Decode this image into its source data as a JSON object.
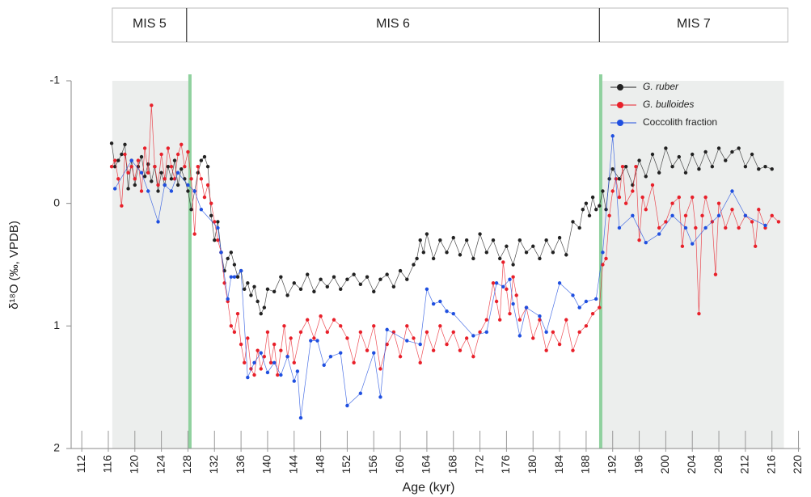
{
  "chart_data": {
    "type": "line",
    "xlabel": "Age (kyr)",
    "ylabel": "δ¹⁸O (‰, VPDB)",
    "xlim": [
      110.4,
      220.3
    ],
    "ylim": [
      -1,
      2
    ],
    "y_inverted": true,
    "xticks": [
      112,
      116,
      120,
      124,
      128,
      132,
      136,
      140,
      144,
      148,
      152,
      156,
      160,
      164,
      168,
      172,
      176,
      180,
      184,
      188,
      192,
      196,
      200,
      204,
      208,
      212,
      216,
      220
    ],
    "yticks": [
      -1,
      0,
      1,
      2
    ],
    "legend": "upper right",
    "shaded_regions": [
      [
        116.6,
        128.3
      ],
      [
        190.2,
        217.8
      ]
    ],
    "boundaries": [
      {
        "x": 128.3,
        "color": "#8fd19e"
      },
      {
        "x": 190.2,
        "color": "#8fd19e"
      }
    ],
    "mis_stages": [
      {
        "label": "MIS 5",
        "start": 116.6,
        "end": 127.8
      },
      {
        "label": "MIS 6",
        "start": 127.8,
        "end": 190.0
      },
      {
        "label": "MIS 7",
        "start": 190.0,
        "end": 218.4
      }
    ],
    "series": [
      {
        "name": "G. ruber",
        "color": "#222222",
        "x": [
          116.5,
          117,
          117.5,
          118,
          118.5,
          119,
          119.5,
          120,
          120.5,
          121,
          121.5,
          122,
          122.5,
          123,
          123.5,
          124,
          124.5,
          125,
          125.5,
          126,
          126.5,
          127,
          127.5,
          128,
          128.5,
          129,
          129.5,
          130,
          130.5,
          131,
          131.5,
          132,
          132.5,
          133,
          133.5,
          134,
          134.5,
          135,
          135.5,
          136,
          136.5,
          137,
          137.5,
          138,
          138.5,
          139,
          139.5,
          140,
          141,
          142,
          143,
          144,
          145,
          146,
          147,
          148,
          149,
          150,
          151,
          152,
          153,
          154,
          155,
          156,
          157,
          158,
          159,
          160,
          161,
          162,
          162.5,
          163,
          163.5,
          164,
          165,
          166,
          167,
          168,
          169,
          170,
          171,
          172,
          173,
          174,
          175,
          176,
          177,
          178,
          179,
          180,
          181,
          182,
          183,
          184,
          185,
          186,
          187,
          187.5,
          188,
          188.5,
          189,
          189.5,
          190,
          190.5,
          191,
          191.5,
          192,
          193,
          194,
          195,
          196,
          197,
          198,
          199,
          200,
          201,
          202,
          203,
          204,
          205,
          206,
          207,
          208,
          209,
          210,
          211,
          212,
          213,
          214,
          215,
          216
        ],
        "values": [
          -0.49,
          -0.3,
          -0.35,
          -0.4,
          -0.48,
          -0.12,
          -0.35,
          -0.15,
          -0.3,
          -0.38,
          -0.22,
          -0.32,
          -0.18,
          -0.3,
          -0.1,
          -0.25,
          -0.15,
          -0.3,
          -0.2,
          -0.35,
          -0.15,
          -0.28,
          -0.2,
          -0.1,
          0.05,
          -0.1,
          -0.25,
          -0.35,
          -0.38,
          -0.3,
          0.1,
          0.3,
          0.15,
          0.4,
          0.55,
          0.45,
          0.4,
          0.5,
          0.6,
          0.55,
          0.7,
          0.65,
          0.75,
          0.68,
          0.8,
          0.9,
          0.85,
          0.7,
          0.72,
          0.6,
          0.75,
          0.65,
          0.7,
          0.58,
          0.72,
          0.62,
          0.68,
          0.6,
          0.7,
          0.62,
          0.58,
          0.66,
          0.6,
          0.72,
          0.62,
          0.58,
          0.68,
          0.55,
          0.62,
          0.5,
          0.45,
          0.3,
          0.4,
          0.25,
          0.45,
          0.3,
          0.4,
          0.28,
          0.42,
          0.3,
          0.45,
          0.25,
          0.4,
          0.3,
          0.45,
          0.35,
          0.5,
          0.3,
          0.4,
          0.35,
          0.45,
          0.3,
          0.4,
          0.28,
          0.42,
          0.15,
          0.2,
          0.05,
          0.0,
          0.1,
          -0.05,
          0.05,
          0.02,
          -0.1,
          0.05,
          -0.2,
          -0.28,
          -0.2,
          -0.3,
          -0.15,
          -0.35,
          -0.22,
          -0.4,
          -0.25,
          -0.45,
          -0.3,
          -0.38,
          -0.25,
          -0.4,
          -0.28,
          -0.42,
          -0.3,
          -0.45,
          -0.35,
          -0.42,
          -0.45,
          -0.3,
          -0.4,
          -0.28,
          -0.3,
          -0.28
        ]
      },
      {
        "name": "G. bulloides",
        "color": "#e8202a",
        "x": [
          116.5,
          117,
          117.5,
          118,
          118.5,
          119,
          119.5,
          120,
          120.5,
          121,
          121.5,
          122,
          122.5,
          123,
          123.5,
          124,
          124.5,
          125,
          125.5,
          126,
          126.5,
          127,
          127.5,
          128,
          128.5,
          129,
          129.5,
          130,
          130.5,
          131,
          131.5,
          132,
          132.5,
          133,
          133.5,
          134,
          134.5,
          135,
          135.5,
          136,
          136.5,
          137,
          137.5,
          138,
          138.5,
          139,
          139.5,
          140,
          140.5,
          141,
          141.5,
          142,
          142.5,
          143,
          143.5,
          144,
          145,
          146,
          147,
          148,
          149,
          150,
          151,
          152,
          153,
          154,
          155,
          156,
          157,
          158,
          159,
          160,
          161,
          162,
          163,
          164,
          165,
          166,
          167,
          168,
          169,
          170,
          171,
          172,
          173,
          174,
          174.5,
          175,
          175.5,
          176,
          176.5,
          177,
          177.5,
          178,
          179,
          180,
          181,
          182,
          183,
          184,
          185,
          186,
          187,
          188,
          189,
          190,
          190.5,
          191,
          191.5,
          192,
          192.5,
          193,
          193.5,
          194,
          195,
          195.5,
          196,
          196.5,
          197,
          198,
          199,
          200,
          201,
          202,
          202.5,
          203,
          204,
          204.5,
          205,
          205.5,
          206,
          207,
          207.5,
          208,
          209,
          210,
          211,
          212,
          213,
          213.5,
          214,
          215,
          216,
          217
        ],
        "values": [
          -0.3,
          -0.35,
          -0.2,
          0.02,
          -0.4,
          -0.25,
          -0.3,
          -0.2,
          -0.35,
          -0.1,
          -0.45,
          -0.25,
          -0.8,
          -0.3,
          -0.15,
          -0.4,
          -0.2,
          -0.45,
          -0.3,
          -0.2,
          -0.4,
          -0.48,
          -0.3,
          -0.42,
          -0.2,
          0.25,
          -0.3,
          -0.2,
          -0.05,
          -0.15,
          0.0,
          0.15,
          0.3,
          0.4,
          0.65,
          0.8,
          1.0,
          1.05,
          0.9,
          1.15,
          1.3,
          1.1,
          1.35,
          1.4,
          1.2,
          1.35,
          1.25,
          1.05,
          1.3,
          1.15,
          1.4,
          1.2,
          1.0,
          1.25,
          1.1,
          1.3,
          1.05,
          0.95,
          1.1,
          0.92,
          1.05,
          0.95,
          1.0,
          1.1,
          1.3,
          1.05,
          1.2,
          1.0,
          1.35,
          1.15,
          1.05,
          1.25,
          1.0,
          1.1,
          1.3,
          1.05,
          1.2,
          1.0,
          1.15,
          1.05,
          1.2,
          1.1,
          1.25,
          1.05,
          0.95,
          0.65,
          0.8,
          0.95,
          0.48,
          0.7,
          0.9,
          0.6,
          0.75,
          0.95,
          0.85,
          1.1,
          0.95,
          1.2,
          1.05,
          1.15,
          0.95,
          1.2,
          1.05,
          1.0,
          0.9,
          0.85,
          0.5,
          0.45,
          0.1,
          -0.1,
          -0.2,
          -0.05,
          -0.3,
          0.0,
          -0.1,
          -0.3,
          0.3,
          -0.05,
          0.05,
          -0.15,
          0.2,
          0.15,
          0.0,
          -0.05,
          0.35,
          0.1,
          -0.05,
          0.2,
          0.9,
          0.1,
          -0.05,
          0.15,
          0.58,
          0.0,
          0.2,
          0.05,
          0.2,
          0.1,
          0.15,
          0.35,
          0.05,
          0.2,
          0.1,
          0.15
        ]
      },
      {
        "name": "Coccolith fraction",
        "color": "#1f4fe0",
        "x": [
          117,
          119.5,
          121,
          122,
          123.5,
          124.5,
          125.5,
          126.5,
          128,
          129,
          130,
          132.5,
          133,
          134,
          134.5,
          135,
          136,
          137,
          138,
          139,
          140,
          141,
          142,
          143,
          144,
          144.5,
          145,
          146.5,
          147.5,
          148.5,
          149.5,
          151,
          152,
          154,
          156,
          157,
          158,
          161,
          163,
          164,
          165,
          166,
          167,
          168,
          171,
          173,
          174.5,
          175.5,
          176.5,
          177,
          178,
          179,
          181,
          182,
          184,
          186,
          187,
          188,
          189.5,
          190.5,
          192,
          193,
          195,
          197,
          199,
          201,
          203,
          204,
          206,
          208,
          210,
          212,
          215
        ],
        "values": [
          -0.12,
          -0.35,
          -0.25,
          -0.1,
          0.15,
          -0.15,
          -0.1,
          -0.25,
          -0.15,
          -0.1,
          0.05,
          0.2,
          0.4,
          0.78,
          0.6,
          0.6,
          0.55,
          1.42,
          1.3,
          1.22,
          1.38,
          1.3,
          1.4,
          1.25,
          1.45,
          1.37,
          1.75,
          1.12,
          1.12,
          1.32,
          1.25,
          1.22,
          1.65,
          1.55,
          1.22,
          1.58,
          1.03,
          1.12,
          1.15,
          0.7,
          0.82,
          0.8,
          0.88,
          0.9,
          1.08,
          1.05,
          0.65,
          0.68,
          0.62,
          0.82,
          1.08,
          0.85,
          0.92,
          1.05,
          0.65,
          0.75,
          0.85,
          0.8,
          0.78,
          0.4,
          -0.55,
          0.2,
          0.1,
          0.32,
          0.25,
          0.1,
          0.2,
          0.33,
          0.2,
          0.1,
          -0.1,
          0.1,
          0.18
        ]
      }
    ]
  }
}
